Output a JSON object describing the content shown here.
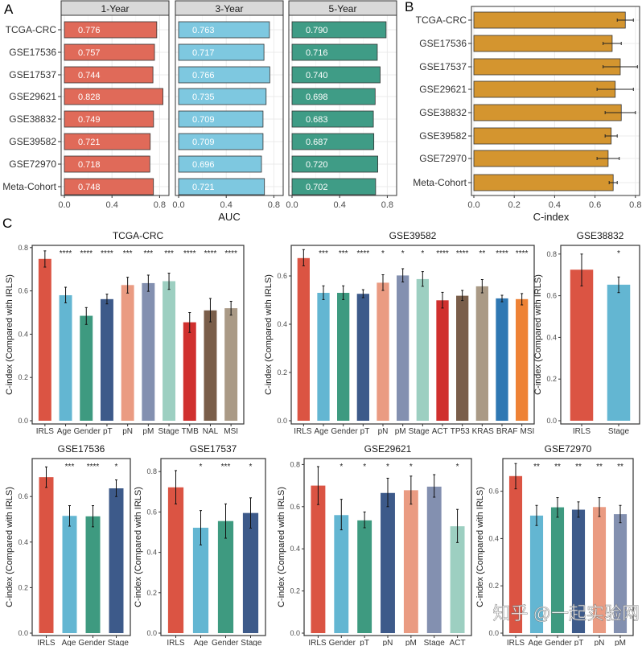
{
  "panel_labels": {
    "a": "A",
    "b": "B",
    "c": "C"
  },
  "watermark": "知乎 @一起实验网",
  "chart_data": [
    {
      "id": "A",
      "type": "bar",
      "orientation": "horizontal",
      "facets": [
        "1-Year",
        "3-Year",
        "5-Year"
      ],
      "categories": [
        "TCGA-CRC",
        "GSE17536",
        "GSE17537",
        "GSE29621",
        "GSE38832",
        "GSE39582",
        "GSE72970",
        "Meta-Cohort"
      ],
      "series": [
        {
          "name": "1-Year",
          "color": "#E06A59",
          "values": [
            0.776,
            0.757,
            0.744,
            0.828,
            0.749,
            0.721,
            0.718,
            0.748
          ],
          "labels": [
            "0.776",
            "0.757",
            "0.744",
            "0.828",
            "0.749",
            "0.721",
            "0.718",
            "0.748"
          ]
        },
        {
          "name": "3-Year",
          "color": "#7EC8E0",
          "values": [
            0.763,
            0.717,
            0.766,
            0.735,
            0.709,
            0.709,
            0.696,
            0.721
          ],
          "labels": [
            "0.763",
            "0.717",
            "0.766",
            "0.735",
            "0.709",
            "0.709",
            "0.696",
            "0.721"
          ]
        },
        {
          "name": "5-Year",
          "color": "#3F9C86",
          "values": [
            0.79,
            0.716,
            0.74,
            0.698,
            0.683,
            0.687,
            0.72,
            0.702
          ],
          "labels": [
            "0.790",
            "0.716",
            "0.740",
            "0.698",
            "0.683",
            "0.687",
            "0.720",
            "0.702"
          ]
        }
      ],
      "xlabel": "AUC",
      "xlim": [
        0,
        0.85
      ],
      "xticks": [
        0,
        0.4,
        0.8
      ],
      "xtick_labels": [
        "0.0",
        "0.4",
        "0.8"
      ],
      "grid": true
    },
    {
      "id": "B",
      "type": "bar",
      "orientation": "horizontal",
      "categories": [
        "TCGA-CRC",
        "GSE17536",
        "GSE17537",
        "GSE29621",
        "GSE38832",
        "GSE39582",
        "GSE72970",
        "Meta-Cohort"
      ],
      "values": [
        0.75,
        0.685,
        0.725,
        0.7,
        0.73,
        0.68,
        0.665,
        0.69
      ],
      "error_low": [
        0.71,
        0.64,
        0.64,
        0.61,
        0.65,
        0.65,
        0.61,
        0.67
      ],
      "error_high": [
        0.79,
        0.73,
        0.81,
        0.79,
        0.8,
        0.71,
        0.72,
        0.71
      ],
      "color": "#D4952F",
      "xlabel": "C-index",
      "xlim": [
        0,
        0.82
      ],
      "xticks": [
        0,
        0.2,
        0.4,
        0.6,
        0.8
      ],
      "xtick_labels": [
        "0.0",
        "0.2",
        "0.4",
        "0.6",
        "0.8"
      ],
      "grid": true
    },
    {
      "id": "C",
      "type": "bar",
      "ylabel": "C-index (Compared with IRLS)",
      "palette": [
        "#DB5443",
        "#63B6D2",
        "#3E9A80",
        "#3D5A8A",
        "#EA9B82",
        "#8390B0",
        "#9DCFC1",
        "#D0302E",
        "#7A5E4A",
        "#AA9A86",
        "#2F78B3",
        "#EE8235"
      ],
      "grid": false,
      "panels": [
        {
          "title": "TCGA-CRC",
          "categories": [
            "IRLS",
            "Age",
            "Gender",
            "pT",
            "pN",
            "pM",
            "Stage",
            "TMB",
            "NAL",
            "MSI"
          ],
          "values": [
            0.748,
            0.58,
            0.485,
            0.562,
            0.627,
            0.636,
            0.645,
            0.455,
            0.51,
            0.52
          ],
          "error_low": [
            0.71,
            0.545,
            0.445,
            0.54,
            0.59,
            0.598,
            0.607,
            0.408,
            0.457,
            0.488
          ],
          "error_high": [
            0.785,
            0.617,
            0.523,
            0.585,
            0.663,
            0.673,
            0.682,
            0.5,
            0.565,
            0.552
          ],
          "significance": [
            "",
            "****",
            "****",
            "****",
            "***",
            "***",
            "***",
            "****",
            "****",
            "****"
          ],
          "colors": [
            "#DB5443",
            "#63B6D2",
            "#3E9A80",
            "#3D5A8A",
            "#EA9B82",
            "#8390B0",
            "#9DCFC1",
            "#D0302E",
            "#7A5E4A",
            "#AA9A86"
          ],
          "yticks": [
            0,
            0.2,
            0.4,
            0.6,
            0.8
          ],
          "ytick_labels": [
            "0.0",
            "0.2",
            "0.4",
            "0.6",
            "0.8"
          ]
        },
        {
          "title": "GSE39582",
          "categories": [
            "IRLS",
            "Age",
            "Gender",
            "pT",
            "pN",
            "pM",
            "Stage",
            "ACT",
            "TP53",
            "KRAS",
            "BRAF",
            "MSI"
          ],
          "values": [
            0.674,
            0.53,
            0.53,
            0.526,
            0.572,
            0.602,
            0.587,
            0.499,
            0.518,
            0.557,
            0.507,
            0.504
          ],
          "error_low": [
            0.642,
            0.502,
            0.502,
            0.51,
            0.54,
            0.575,
            0.557,
            0.467,
            0.498,
            0.53,
            0.493,
            0.48
          ],
          "error_high": [
            0.709,
            0.559,
            0.559,
            0.543,
            0.605,
            0.63,
            0.618,
            0.532,
            0.54,
            0.585,
            0.52,
            0.527
          ],
          "significance": [
            "",
            "***",
            "***",
            "****",
            "*",
            "*",
            "*",
            "****",
            "****",
            "**",
            "****",
            "****"
          ],
          "colors": [
            "#DB5443",
            "#63B6D2",
            "#3E9A80",
            "#3D5A8A",
            "#EA9B82",
            "#8390B0",
            "#9DCFC1",
            "#D0302E",
            "#7A5E4A",
            "#AA9A86",
            "#2F78B3",
            "#EE8235"
          ],
          "yticks": [
            0,
            0.2,
            0.4,
            0.6
          ],
          "ytick_labels": [
            "0.0",
            "0.2",
            "0.4",
            "0.6"
          ]
        },
        {
          "title": "GSE38832",
          "categories": [
            "IRLS",
            "Stage"
          ],
          "values": [
            0.725,
            0.653
          ],
          "error_low": [
            0.647,
            0.615
          ],
          "error_high": [
            0.8,
            0.69
          ],
          "significance": [
            "",
            "*"
          ],
          "colors": [
            "#DB5443",
            "#63B6D2"
          ],
          "yticks": [
            0,
            0.2,
            0.4,
            0.6,
            0.8
          ],
          "ytick_labels": [
            "0.0",
            "0.2",
            "0.4",
            "0.6",
            "0.8"
          ]
        },
        {
          "title": "GSE17536",
          "categories": [
            "IRLS",
            "Age",
            "Gender",
            "Stage"
          ],
          "values": [
            0.685,
            0.515,
            0.513,
            0.636
          ],
          "error_low": [
            0.64,
            0.47,
            0.467,
            0.6
          ],
          "error_high": [
            0.73,
            0.56,
            0.56,
            0.673
          ],
          "significance": [
            "",
            "***",
            "****",
            "*"
          ],
          "colors": [
            "#DB5443",
            "#63B6D2",
            "#3E9A80",
            "#3D5A8A"
          ],
          "yticks": [
            0,
            0.2,
            0.4,
            0.6
          ],
          "ytick_labels": [
            "0.0",
            "0.2",
            "0.4",
            "0.6"
          ]
        },
        {
          "title": "GSE17537",
          "categories": [
            "IRLS",
            "Age",
            "Gender",
            "Stage"
          ],
          "values": [
            0.722,
            0.522,
            0.555,
            0.595
          ],
          "error_low": [
            0.64,
            0.437,
            0.47,
            0.52
          ],
          "error_high": [
            0.805,
            0.607,
            0.64,
            0.67
          ],
          "significance": [
            "",
            "*",
            "***",
            "*"
          ],
          "colors": [
            "#DB5443",
            "#63B6D2",
            "#3E9A80",
            "#3D5A8A"
          ],
          "yticks": [
            0,
            0.2,
            0.4,
            0.6,
            0.8
          ],
          "ytick_labels": [
            "0.0",
            "0.2",
            "0.4",
            "0.6",
            "0.8"
          ]
        },
        {
          "title": "GSE29621",
          "categories": [
            "IRLS",
            "Gender",
            "pT",
            "pN",
            "pM",
            "Stage",
            "ACT"
          ],
          "values": [
            0.7,
            0.56,
            0.535,
            0.665,
            0.678,
            0.695,
            0.507
          ],
          "error_low": [
            0.61,
            0.49,
            0.5,
            0.6,
            0.612,
            0.645,
            0.43
          ],
          "error_high": [
            0.79,
            0.635,
            0.575,
            0.735,
            0.745,
            0.752,
            0.587
          ],
          "significance": [
            "",
            "*",
            "*",
            "*",
            "*",
            "",
            "*"
          ],
          "colors": [
            "#DB5443",
            "#63B6D2",
            "#3E9A80",
            "#3D5A8A",
            "#EA9B82",
            "#8390B0",
            "#9DCFC1"
          ],
          "yticks": [
            0,
            0.2,
            0.4,
            0.6,
            0.8
          ],
          "ytick_labels": [
            "0.0",
            "0.2",
            "0.4",
            "0.6",
            "0.8"
          ]
        },
        {
          "title": "GSE72970",
          "categories": [
            "IRLS",
            "Age",
            "Gender",
            "pT",
            "pN",
            "pM"
          ],
          "values": [
            0.664,
            0.497,
            0.532,
            0.522,
            0.533,
            0.503
          ],
          "error_low": [
            0.61,
            0.455,
            0.49,
            0.49,
            0.493,
            0.467
          ],
          "error_high": [
            0.717,
            0.54,
            0.573,
            0.555,
            0.573,
            0.54
          ],
          "significance": [
            "",
            "**",
            "**",
            "**",
            "**",
            "**"
          ],
          "colors": [
            "#DB5443",
            "#63B6D2",
            "#3E9A80",
            "#3D5A8A",
            "#EA9B82",
            "#8390B0"
          ],
          "yticks": [
            0,
            0.2,
            0.4,
            0.6
          ],
          "ytick_labels": [
            "0.0",
            "0.2",
            "0.4",
            "0.6"
          ]
        }
      ]
    }
  ]
}
